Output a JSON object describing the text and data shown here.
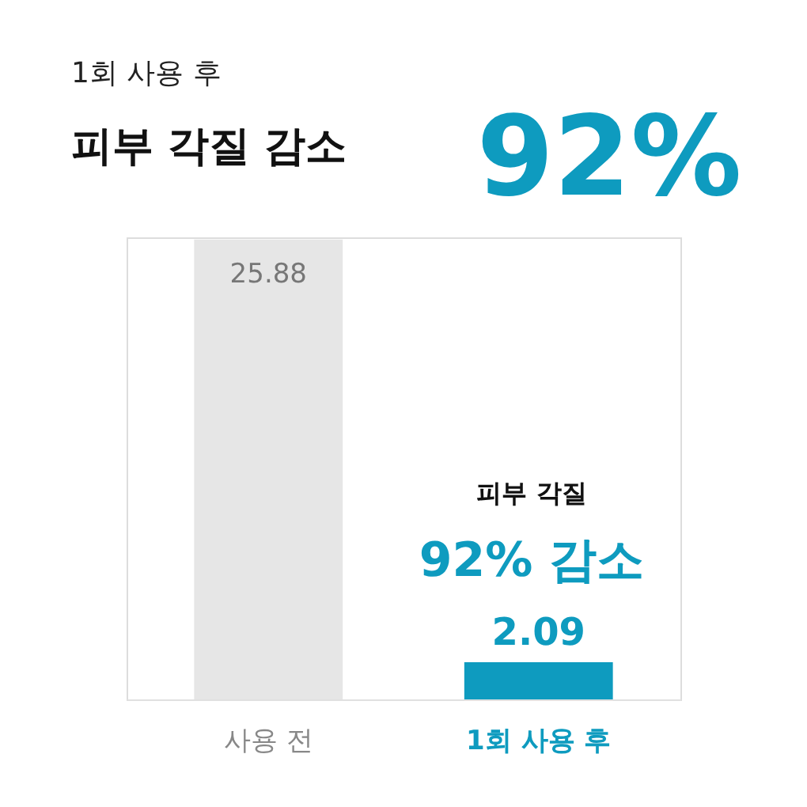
{
  "chart_data": {
    "type": "bar",
    "title": "1회 사용 후",
    "subtitle": "피부 각질 감소",
    "categories": [
      "사용 전",
      "1회 사용 후"
    ],
    "values": [
      25.88,
      2.09
    ],
    "colors": [
      "#e6e6e6",
      "#0e9bbf"
    ],
    "ylim": [
      0,
      26
    ],
    "data_labels": true,
    "tick_labels": "x",
    "annotations": [
      "92%",
      "피부 각질",
      "92% 감소"
    ]
  }
}
